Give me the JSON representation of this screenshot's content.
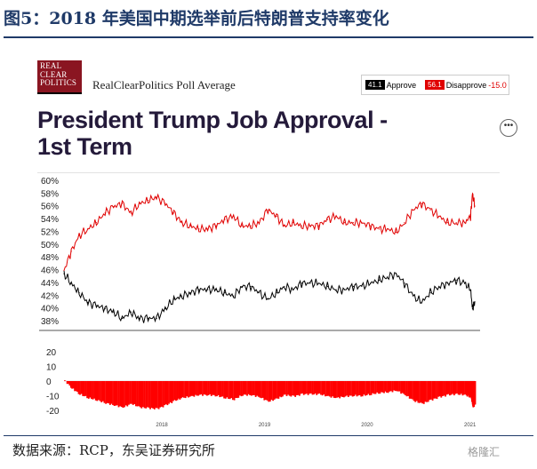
{
  "figure": {
    "title": "图5：2018 年美国中期选举前后特朗普支持率变化",
    "source": "数据来源：RCP，东吴证券研究所",
    "watermark": "格隆汇"
  },
  "header": {
    "logo_lines": [
      "REAL",
      "CLEAR",
      "POLITICS"
    ],
    "poll_label": "RealClearPolitics Poll Average",
    "legend": {
      "approve_value": "41.1",
      "approve_label": "Approve",
      "disapprove_value": "56.1",
      "disapprove_label": "Disapprove",
      "spread_label": "-15.0"
    },
    "more_icon": "ellipsis-icon"
  },
  "chart_data": [
    {
      "type": "line",
      "title": "President Trump Job Approval - 1st Term",
      "x_ticks": [
        "2018",
        "2019",
        "2020",
        "2021"
      ],
      "x_range": [
        "2017-01-20",
        "2021-01-20"
      ],
      "ylim": [
        38,
        60
      ],
      "y_ticks": [
        "60%",
        "58%",
        "56%",
        "54%",
        "52%",
        "50%",
        "48%",
        "46%",
        "44%",
        "42%",
        "40%",
        "38%"
      ],
      "series": [
        {
          "name": "Disapprove",
          "color": "#e00000",
          "x": [
            "2017-01-20",
            "2017-02-15",
            "2017-03-15",
            "2017-04-15",
            "2017-05-15",
            "2017-06-15",
            "2017-07-15",
            "2017-08-15",
            "2017-09-15",
            "2017-10-15",
            "2017-11-15",
            "2017-12-15",
            "2018-01-15",
            "2018-02-15",
            "2018-03-15",
            "2018-04-15",
            "2018-05-15",
            "2018-06-15",
            "2018-07-15",
            "2018-08-15",
            "2018-09-15",
            "2018-10-15",
            "2018-11-15",
            "2018-12-15",
            "2019-01-15",
            "2019-02-15",
            "2019-03-15",
            "2019-04-15",
            "2019-05-15",
            "2019-06-15",
            "2019-07-15",
            "2019-08-15",
            "2019-09-15",
            "2019-10-15",
            "2019-11-15",
            "2019-12-15",
            "2020-01-15",
            "2020-02-15",
            "2020-03-15",
            "2020-04-15",
            "2020-05-15",
            "2020-06-15",
            "2020-07-15",
            "2020-08-15",
            "2020-09-15",
            "2020-10-15",
            "2020-11-15",
            "2020-12-15",
            "2021-01-05",
            "2021-01-12",
            "2021-01-20"
          ],
          "values": [
            46.0,
            49.0,
            51.5,
            52.5,
            53.5,
            55.0,
            56.0,
            56.5,
            55.0,
            56.5,
            57.0,
            57.5,
            56.5,
            55.0,
            53.5,
            53.0,
            52.5,
            52.5,
            53.0,
            54.0,
            54.5,
            53.0,
            53.0,
            53.5,
            55.5,
            54.5,
            53.0,
            53.5,
            53.0,
            53.0,
            53.0,
            54.0,
            54.5,
            53.5,
            53.5,
            53.5,
            53.0,
            52.5,
            52.5,
            52.0,
            53.5,
            55.5,
            56.5,
            55.5,
            54.5,
            53.5,
            53.5,
            53.5,
            54.5,
            58.0,
            56.1
          ]
        },
        {
          "name": "Approve",
          "color": "#000000",
          "x": [
            "2017-01-20",
            "2017-02-15",
            "2017-03-15",
            "2017-04-15",
            "2017-05-15",
            "2017-06-15",
            "2017-07-15",
            "2017-08-15",
            "2017-09-15",
            "2017-10-15",
            "2017-11-15",
            "2017-12-15",
            "2018-01-15",
            "2018-02-15",
            "2018-03-15",
            "2018-04-15",
            "2018-05-15",
            "2018-06-15",
            "2018-07-15",
            "2018-08-15",
            "2018-09-15",
            "2018-10-15",
            "2018-11-15",
            "2018-12-15",
            "2019-01-15",
            "2019-02-15",
            "2019-03-15",
            "2019-04-15",
            "2019-05-15",
            "2019-06-15",
            "2019-07-15",
            "2019-08-15",
            "2019-09-15",
            "2019-10-15",
            "2019-11-15",
            "2019-12-15",
            "2020-01-15",
            "2020-02-15",
            "2020-03-15",
            "2020-04-15",
            "2020-05-15",
            "2020-06-15",
            "2020-07-15",
            "2020-08-15",
            "2020-09-15",
            "2020-10-15",
            "2020-11-15",
            "2020-12-15",
            "2021-01-05",
            "2021-01-12",
            "2021-01-20"
          ],
          "values": [
            45.5,
            44.0,
            42.5,
            41.0,
            40.5,
            40.0,
            39.5,
            38.5,
            39.5,
            38.5,
            38.5,
            38.5,
            40.0,
            41.5,
            42.0,
            42.5,
            43.0,
            43.0,
            43.0,
            42.5,
            42.0,
            43.5,
            43.5,
            42.5,
            41.5,
            42.5,
            43.5,
            43.0,
            44.0,
            44.0,
            44.0,
            43.5,
            43.0,
            43.0,
            43.5,
            43.5,
            44.0,
            44.5,
            45.0,
            45.5,
            44.0,
            42.0,
            41.0,
            42.5,
            43.5,
            44.0,
            44.5,
            44.0,
            43.0,
            40.0,
            41.1
          ]
        }
      ]
    },
    {
      "type": "area",
      "y_ticks": [
        "20",
        "10",
        "0",
        "-10",
        "-20"
      ],
      "ylim": [
        -20,
        20
      ],
      "series": [
        {
          "name": "Spread",
          "color": "#ff0000",
          "x": [
            "2017-01-20",
            "2017-02-15",
            "2017-03-15",
            "2017-04-15",
            "2017-05-15",
            "2017-06-15",
            "2017-07-15",
            "2017-08-15",
            "2017-09-15",
            "2017-10-15",
            "2017-11-15",
            "2017-12-15",
            "2018-01-15",
            "2018-02-15",
            "2018-03-15",
            "2018-04-15",
            "2018-05-15",
            "2018-06-15",
            "2018-07-15",
            "2018-08-15",
            "2018-09-15",
            "2018-10-15",
            "2018-11-15",
            "2018-12-15",
            "2019-01-15",
            "2019-02-15",
            "2019-03-15",
            "2019-04-15",
            "2019-05-15",
            "2019-06-15",
            "2019-07-15",
            "2019-08-15",
            "2019-09-15",
            "2019-10-15",
            "2019-11-15",
            "2019-12-15",
            "2020-01-15",
            "2020-02-15",
            "2020-03-15",
            "2020-04-15",
            "2020-05-15",
            "2020-06-15",
            "2020-07-15",
            "2020-08-15",
            "2020-09-15",
            "2020-10-15",
            "2020-11-15",
            "2020-12-15",
            "2021-01-05",
            "2021-01-12",
            "2021-01-20"
          ],
          "values": [
            0.5,
            -5.0,
            -9.0,
            -11.5,
            -13.0,
            -15.0,
            -16.5,
            -18.0,
            -15.5,
            -18.0,
            -18.5,
            -19.0,
            -16.5,
            -13.5,
            -11.5,
            -10.5,
            -9.5,
            -9.5,
            -10.0,
            -11.5,
            -12.5,
            -9.5,
            -9.5,
            -11.0,
            -14.0,
            -12.0,
            -9.5,
            -10.5,
            -9.0,
            -9.0,
            -9.0,
            -10.5,
            -11.5,
            -10.5,
            -10.0,
            -10.0,
            -9.0,
            -8.0,
            -7.5,
            -6.5,
            -9.5,
            -13.5,
            -15.5,
            -13.0,
            -11.0,
            -9.5,
            -9.0,
            -9.5,
            -11.5,
            -18.0,
            -15.0
          ]
        }
      ]
    }
  ]
}
